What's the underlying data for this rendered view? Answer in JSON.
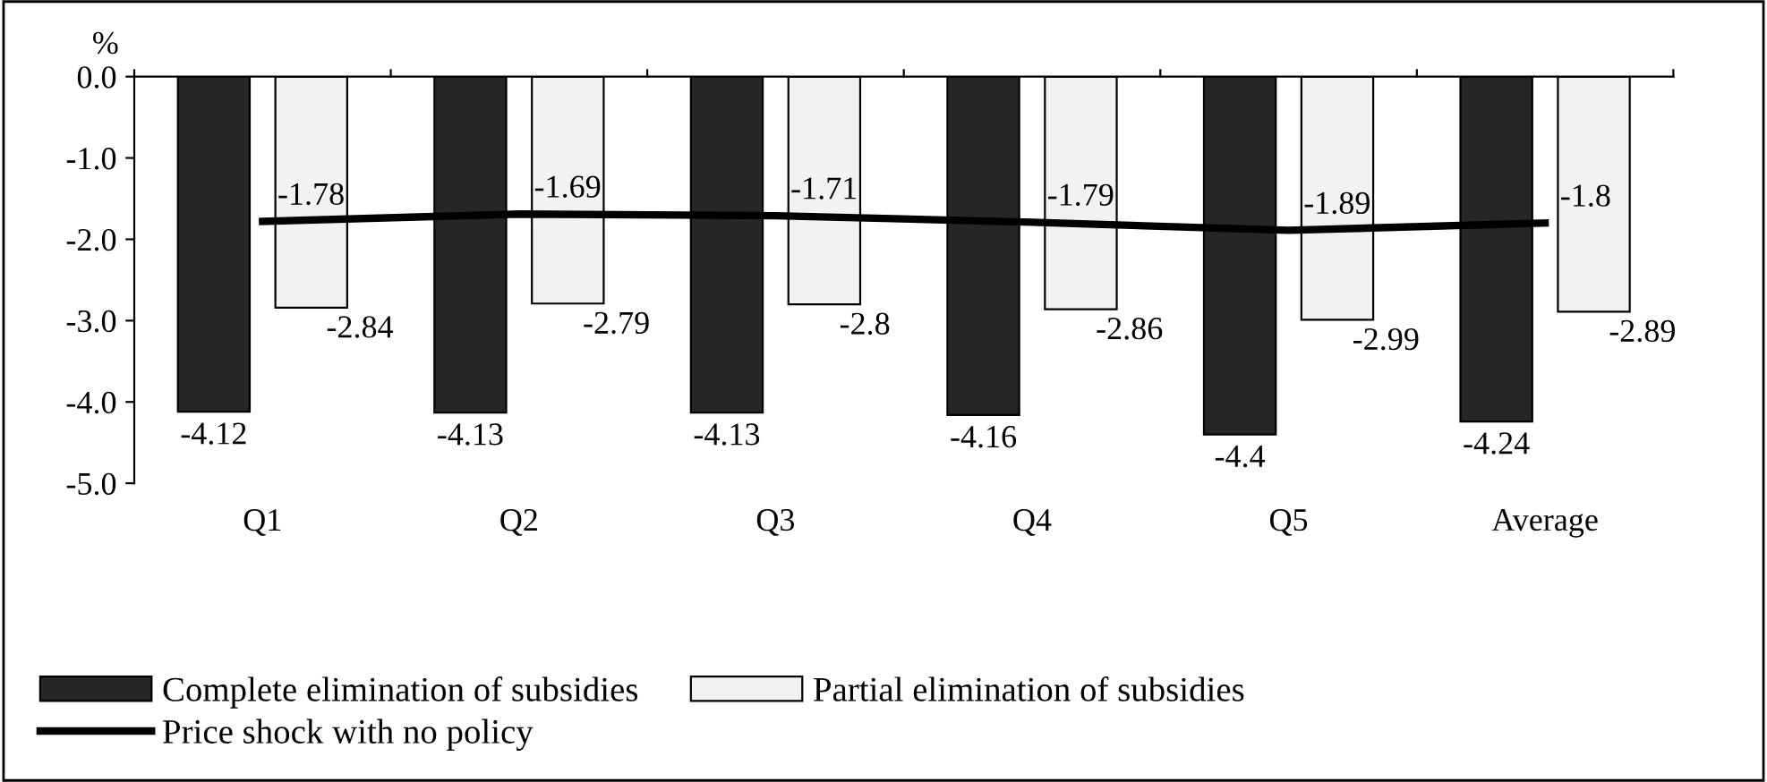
{
  "chart_data": {
    "type": "bar",
    "ylabel": "%",
    "categories": [
      "Q1",
      "Q2",
      "Q3",
      "Q4",
      "Q5",
      "Average"
    ],
    "series": [
      {
        "name": "Complete elimination of subsidies",
        "color": "#262626",
        "values": [
          -4.12,
          -4.13,
          -4.13,
          -4.16,
          -4.4,
          -4.24
        ]
      },
      {
        "name": "Partial elimination of subsidies",
        "color": "#f2f2f2",
        "values": [
          -2.84,
          -2.79,
          -2.8,
          -2.86,
          -2.99,
          -2.89
        ]
      },
      {
        "name": "Price shock with no policy",
        "type": "line",
        "color": "#000000",
        "values": [
          -1.78,
          -1.69,
          -1.71,
          -1.79,
          -1.89,
          -1.8
        ]
      }
    ],
    "ylim": [
      -5,
      0
    ],
    "yticks": [
      {
        "value": 0,
        "label": "0.0"
      },
      {
        "value": -1,
        "label": "-1.0"
      },
      {
        "value": -2,
        "label": "-2.0"
      },
      {
        "value": -3,
        "label": "-3.0"
      },
      {
        "value": -4,
        "label": "-4.0"
      },
      {
        "value": -5,
        "label": "-5.0"
      }
    ],
    "data_labels": true,
    "legend": "bottom",
    "grid": false,
    "marker": "none",
    "line_style": "solid"
  }
}
